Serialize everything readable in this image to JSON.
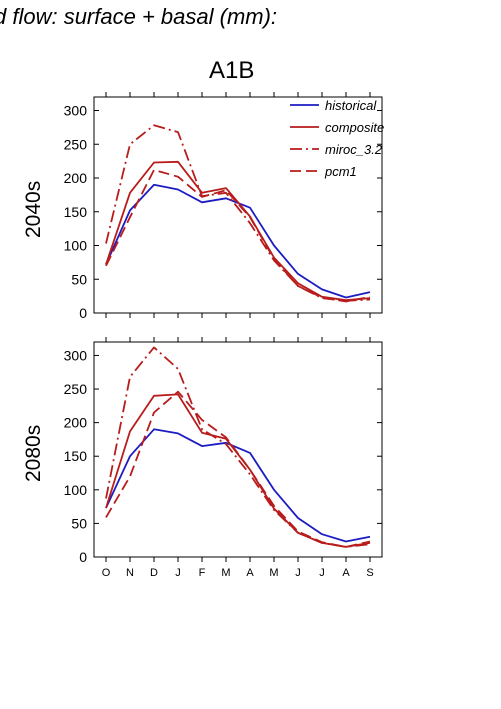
{
  "header": {
    "title": "d flow: surface + basal (mm):",
    "scenario": "A1B"
  },
  "colors": {
    "historical": "#1c1cc2",
    "projection": "#b81c1c",
    "axis": "#000000"
  },
  "chart_data": [
    {
      "type": "line",
      "ylabel": "2040s",
      "xlabel": "",
      "ylim": [
        0,
        320
      ],
      "yticks": [
        0,
        50,
        100,
        150,
        200,
        250,
        300
      ],
      "categories": [
        "O",
        "N",
        "D",
        "J",
        "F",
        "M",
        "A",
        "M",
        "J",
        "J",
        "A",
        "S"
      ],
      "legend": {
        "position": "top-right",
        "entries": [
          "historical",
          "composite",
          "miroc_3.2",
          "pcm1"
        ]
      },
      "series": [
        {
          "name": "historical",
          "style": "solid",
          "color": "#1c1cc2",
          "values": [
            72,
            152,
            190,
            183,
            164,
            170,
            156,
            100,
            58,
            35,
            23,
            31
          ]
        },
        {
          "name": "composite",
          "style": "solid",
          "color": "#b81c1c",
          "values": [
            72,
            178,
            223,
            224,
            178,
            185,
            143,
            82,
            44,
            24,
            19,
            22
          ]
        },
        {
          "name": "miroc_3.2",
          "style": "dashdot",
          "color": "#b81c1c",
          "values": [
            103,
            250,
            278,
            268,
            173,
            178,
            133,
            78,
            40,
            22,
            18,
            20
          ]
        },
        {
          "name": "pcm1",
          "style": "dashed",
          "color": "#b81c1c",
          "values": [
            70,
            142,
            212,
            202,
            172,
            182,
            142,
            80,
            40,
            23,
            17,
            24
          ]
        }
      ]
    },
    {
      "type": "line",
      "ylabel": "2080s",
      "xlabel": "",
      "ylim": [
        0,
        320
      ],
      "yticks": [
        0,
        50,
        100,
        150,
        200,
        250,
        300
      ],
      "categories": [
        "O",
        "N",
        "D",
        "J",
        "F",
        "M",
        "A",
        "M",
        "J",
        "J",
        "A",
        "S"
      ],
      "series": [
        {
          "name": "historical",
          "style": "solid",
          "color": "#1c1cc2",
          "values": [
            73,
            150,
            190,
            184,
            165,
            170,
            155,
            100,
            58,
            34,
            23,
            30
          ]
        },
        {
          "name": "composite",
          "style": "solid",
          "color": "#b81c1c",
          "values": [
            73,
            187,
            240,
            242,
            185,
            176,
            130,
            72,
            36,
            21,
            15,
            21
          ]
        },
        {
          "name": "miroc_3.2",
          "style": "dashdot",
          "color": "#b81c1c",
          "values": [
            87,
            268,
            312,
            280,
            190,
            168,
            123,
            70,
            36,
            21,
            15,
            19
          ]
        },
        {
          "name": "pcm1",
          "style": "dashed",
          "color": "#b81c1c",
          "values": [
            59,
            120,
            215,
            246,
            204,
            178,
            130,
            76,
            38,
            22,
            15,
            23
          ]
        }
      ]
    }
  ]
}
